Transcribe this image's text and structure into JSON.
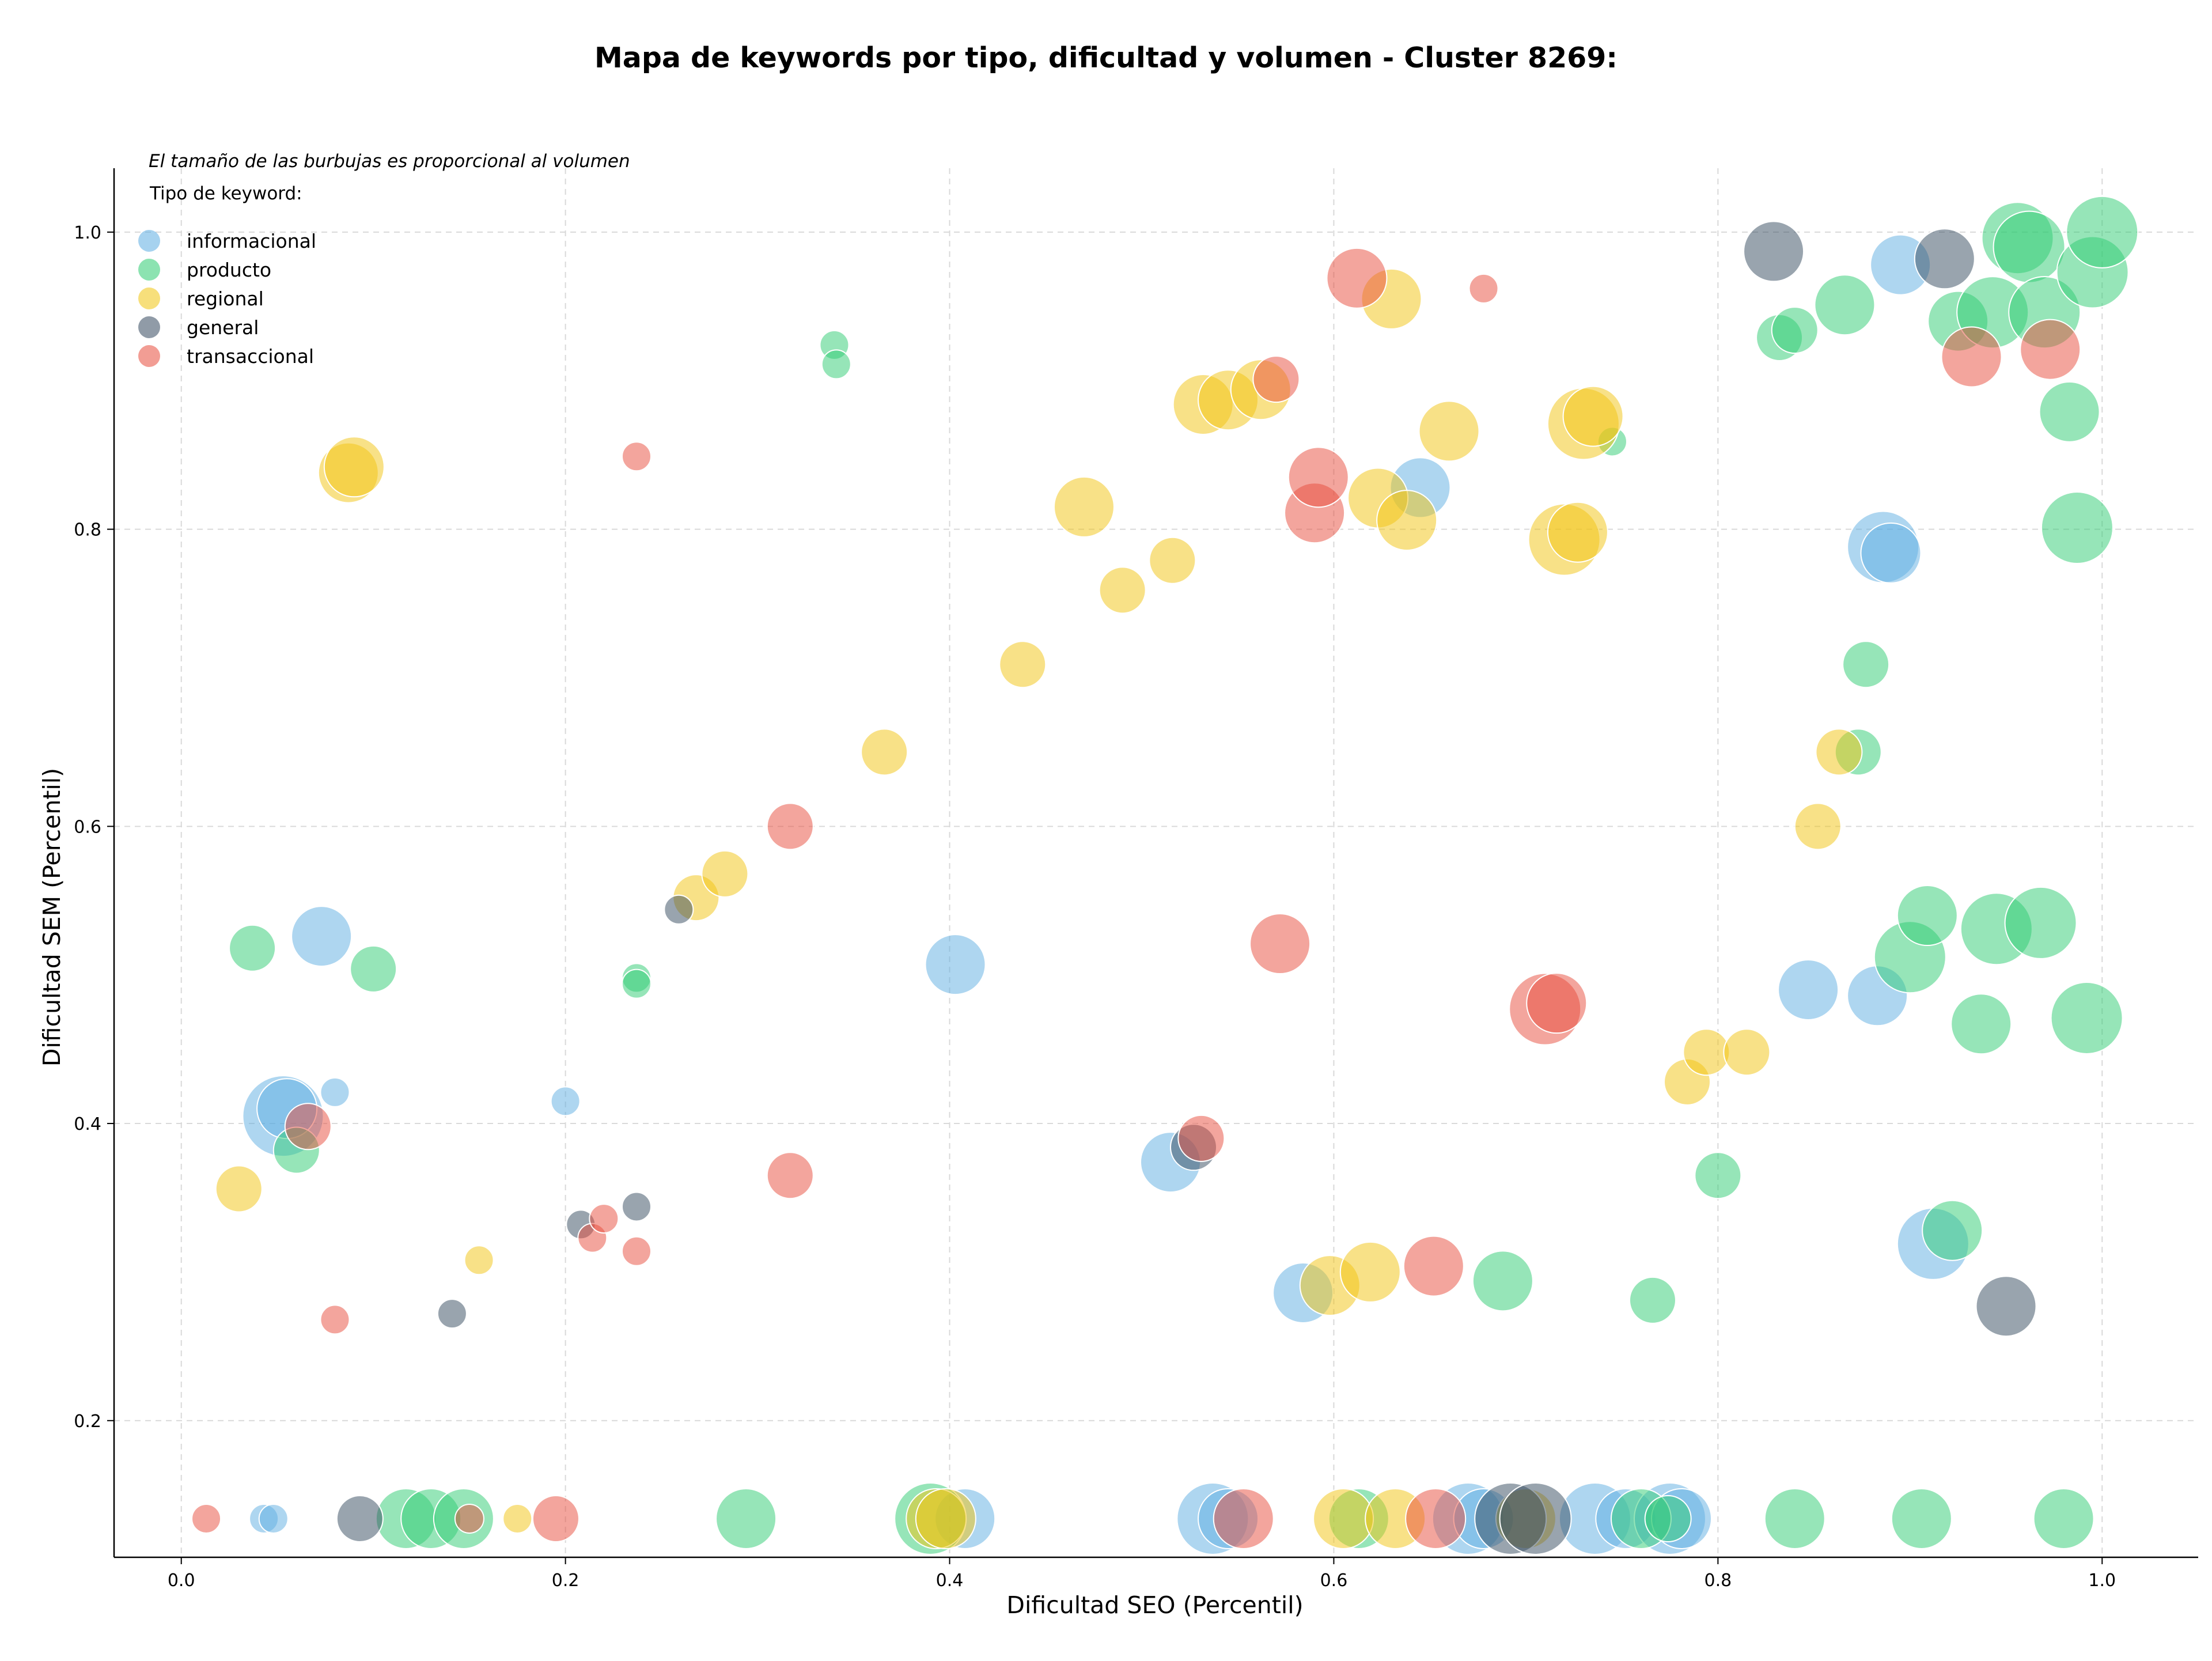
{
  "chart_data": {
    "type": "scatter",
    "title": "Mapa de keywords por tipo, dificultad y volumen - Cluster 8269:",
    "xlabel": "Dificultad SEO (Percentil)",
    "ylabel": "Dificultad SEM (Percentil)",
    "note": "El tamaño de las burbujas es proporcional al volumen",
    "legend_title": "Tipo de keyword:",
    "legend_position": "top-left",
    "grid": true,
    "xlim": [
      -0.035,
      1.05
    ],
    "ylim": [
      0.108,
      1.043
    ],
    "xticks": [
      "0.0",
      "0.2",
      "0.4",
      "0.6",
      "0.8",
      "1.0"
    ],
    "yticks": [
      "0.2",
      "0.4",
      "0.6",
      "0.8",
      "1.0"
    ],
    "series": [
      {
        "name": "informacional",
        "color": "#5DADE2",
        "points": [
          [
            0.043,
            0.134,
            1
          ],
          [
            0.048,
            0.134,
            1
          ],
          [
            0.053,
            0.405,
            5
          ],
          [
            0.055,
            0.41,
            3
          ],
          [
            0.073,
            0.526,
            3
          ],
          [
            0.08,
            0.421,
            1
          ],
          [
            0.2,
            0.415,
            1
          ],
          [
            0.403,
            0.507,
            3
          ],
          [
            0.408,
            0.134,
            3
          ],
          [
            0.515,
            0.374,
            3
          ],
          [
            0.537,
            0.134,
            4
          ],
          [
            0.545,
            0.134,
            3
          ],
          [
            0.584,
            0.286,
            3
          ],
          [
            0.645,
            0.828,
            3
          ],
          [
            0.67,
            0.134,
            4
          ],
          [
            0.678,
            0.134,
            3
          ],
          [
            0.736,
            0.134,
            4
          ],
          [
            0.752,
            0.134,
            3
          ],
          [
            0.775,
            0.134,
            4
          ],
          [
            0.781,
            0.134,
            3
          ],
          [
            0.847,
            0.49,
            3
          ],
          [
            0.883,
            0.486,
            3
          ],
          [
            0.886,
            0.788,
            4
          ],
          [
            0.89,
            0.784,
            3
          ],
          [
            0.895,
            0.978,
            3
          ],
          [
            0.912,
            0.319,
            4
          ]
        ]
      },
      {
        "name": "producto",
        "color": "#2ECC71",
        "points": [
          [
            0.037,
            0.518,
            2
          ],
          [
            0.06,
            0.382,
            2
          ],
          [
            0.1,
            0.504,
            2
          ],
          [
            0.117,
            0.134,
            3
          ],
          [
            0.13,
            0.134,
            3
          ],
          [
            0.147,
            0.134,
            3
          ],
          [
            0.237,
            0.498,
            1
          ],
          [
            0.237,
            0.494,
            1
          ],
          [
            0.34,
            0.924,
            1
          ],
          [
            0.341,
            0.911,
            1
          ],
          [
            0.294,
            0.134,
            3
          ],
          [
            0.39,
            0.134,
            4
          ],
          [
            0.613,
            0.134,
            3
          ],
          [
            0.688,
            0.294,
            3
          ],
          [
            0.745,
            0.859,
            1
          ],
          [
            0.76,
            0.134,
            3
          ],
          [
            0.766,
            0.281,
            2
          ],
          [
            0.774,
            0.134,
            2
          ],
          [
            0.8,
            0.365,
            2
          ],
          [
            0.832,
            0.929,
            2
          ],
          [
            0.84,
            0.934,
            2
          ],
          [
            0.84,
            0.134,
            3
          ],
          [
            0.866,
            0.951,
            3
          ],
          [
            0.873,
            0.65,
            2
          ],
          [
            0.877,
            0.709,
            2
          ],
          [
            0.9,
            0.512,
            4
          ],
          [
            0.906,
            0.134,
            3
          ],
          [
            0.909,
            0.54,
            3
          ],
          [
            0.925,
            0.94,
            3
          ],
          [
            0.922,
            0.328,
            3
          ],
          [
            0.943,
            0.946,
            4
          ],
          [
            0.945,
            0.531,
            4
          ],
          [
            0.937,
            0.467,
            3
          ],
          [
            0.956,
            0.996,
            4
          ],
          [
            0.962,
            0.99,
            4
          ],
          [
            0.968,
            0.535,
            4
          ],
          [
            0.97,
            0.946,
            4
          ],
          [
            0.983,
            0.879,
            3
          ],
          [
            0.98,
            0.134,
            3
          ],
          [
            0.987,
            0.801,
            4
          ],
          [
            0.992,
            0.471,
            4
          ],
          [
            0.995,
            0.973,
            4
          ],
          [
            1.0,
            1.0,
            4
          ]
        ]
      },
      {
        "name": "regional",
        "color": "#F1C40F",
        "points": [
          [
            0.03,
            0.356,
            2
          ],
          [
            0.087,
            0.838,
            3
          ],
          [
            0.09,
            0.842,
            3
          ],
          [
            0.155,
            0.308,
            1
          ],
          [
            0.175,
            0.134,
            1
          ],
          [
            0.268,
            0.552,
            2
          ],
          [
            0.283,
            0.568,
            2
          ],
          [
            0.366,
            0.65,
            2
          ],
          [
            0.438,
            0.709,
            2
          ],
          [
            0.47,
            0.815,
            3
          ],
          [
            0.49,
            0.759,
            2
          ],
          [
            0.393,
            0.134,
            3
          ],
          [
            0.398,
            0.134,
            3
          ],
          [
            0.516,
            0.779,
            2
          ],
          [
            0.532,
            0.884,
            3
          ],
          [
            0.545,
            0.887,
            3
          ],
          [
            0.562,
            0.894,
            3
          ],
          [
            0.598,
            0.291,
            3
          ],
          [
            0.605,
            0.134,
            3
          ],
          [
            0.619,
            0.3,
            3
          ],
          [
            0.623,
            0.821,
            3
          ],
          [
            0.632,
            0.134,
            3
          ],
          [
            0.638,
            0.806,
            3
          ],
          [
            0.66,
            0.866,
            3
          ],
          [
            0.7,
            0.134,
            3
          ],
          [
            0.72,
            0.793,
            4
          ],
          [
            0.727,
            0.798,
            3
          ],
          [
            0.73,
            0.871,
            4
          ],
          [
            0.735,
            0.876,
            3
          ],
          [
            0.784,
            0.428,
            2
          ],
          [
            0.794,
            0.448,
            2
          ],
          [
            0.815,
            0.448,
            2
          ],
          [
            0.852,
            0.6,
            2
          ],
          [
            0.863,
            0.65,
            2
          ],
          [
            0.63,
            0.955,
            3
          ]
        ]
      },
      {
        "name": "general",
        "color": "#34495E",
        "points": [
          [
            0.093,
            0.134,
            2
          ],
          [
            0.141,
            0.272,
            1
          ],
          [
            0.208,
            0.332,
            1
          ],
          [
            0.237,
            0.344,
            1
          ],
          [
            0.259,
            0.544,
            1
          ],
          [
            0.527,
            0.384,
            2
          ],
          [
            0.692,
            0.134,
            4
          ],
          [
            0.705,
            0.134,
            4
          ],
          [
            0.829,
            0.987,
            3
          ],
          [
            0.918,
            0.982,
            3
          ],
          [
            0.95,
            0.277,
            3
          ]
        ]
      },
      {
        "name": "transaccional",
        "color": "#E74C3C",
        "points": [
          [
            0.013,
            0.134,
            1
          ],
          [
            0.066,
            0.398,
            2
          ],
          [
            0.08,
            0.268,
            1
          ],
          [
            0.15,
            0.134,
            1
          ],
          [
            0.195,
            0.134,
            2
          ],
          [
            0.214,
            0.323,
            1
          ],
          [
            0.22,
            0.336,
            1
          ],
          [
            0.237,
            0.314,
            1
          ],
          [
            0.237,
            0.849,
            1
          ],
          [
            0.317,
            0.6,
            2
          ],
          [
            0.317,
            0.365,
            2
          ],
          [
            0.531,
            0.39,
            2
          ],
          [
            0.553,
            0.134,
            3
          ],
          [
            0.57,
            0.901,
            2
          ],
          [
            0.572,
            0.521,
            3
          ],
          [
            0.59,
            0.811,
            3
          ],
          [
            0.592,
            0.835,
            3
          ],
          [
            0.612,
            0.969,
            3
          ],
          [
            0.652,
            0.304,
            3
          ],
          [
            0.653,
            0.134,
            3
          ],
          [
            0.678,
            0.962,
            1
          ],
          [
            0.71,
            0.477,
            4
          ],
          [
            0.716,
            0.481,
            3
          ],
          [
            0.932,
            0.916,
            3
          ],
          [
            0.973,
            0.921,
            3
          ]
        ]
      }
    ]
  }
}
